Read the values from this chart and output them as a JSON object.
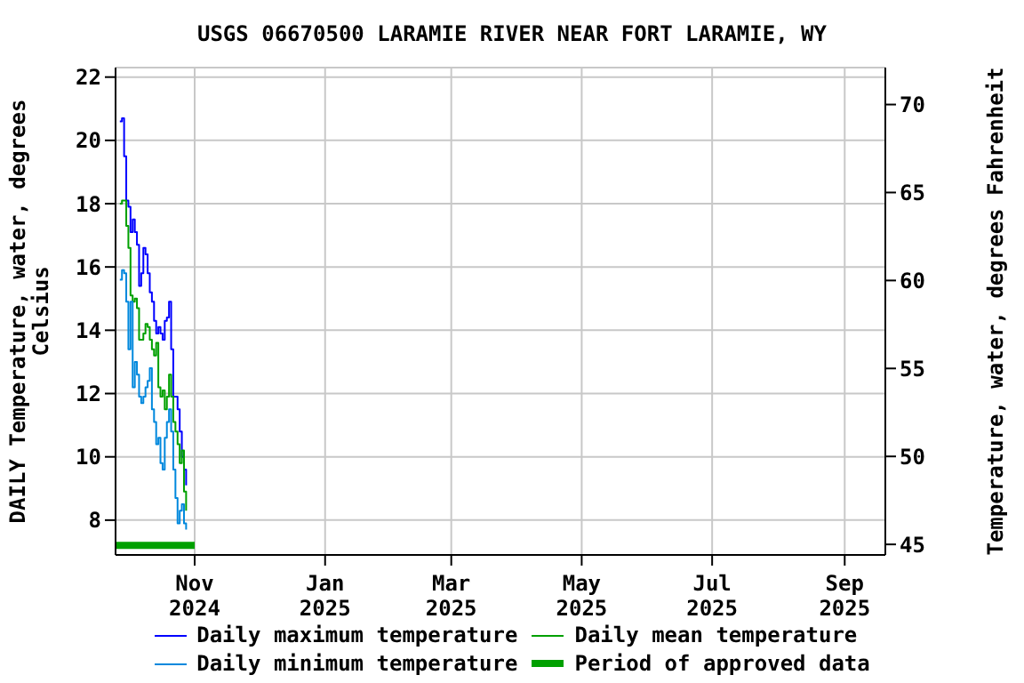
{
  "chart_data": {
    "type": "step",
    "title": "USGS 06670500 LARAMIE RIVER NEAR FORT LARAMIE, WY",
    "ylabel": "DAILY Temperature, water, degrees Celsius",
    "y2label": "Temperature, water, degrees Fahrenheit",
    "xlim": [
      "2024-09-25",
      "2025-09-20"
    ],
    "xticks": [
      {
        "value": "2024-11-01",
        "label": "Nov 2024"
      },
      {
        "value": "2025-01-01",
        "label": "Jan 2025"
      },
      {
        "value": "2025-03-01",
        "label": "Mar 2025"
      },
      {
        "value": "2025-05-01",
        "label": "May 2025"
      },
      {
        "value": "2025-07-01",
        "label": "Jul 2025"
      },
      {
        "value": "2025-09-01",
        "label": "Sep 2025"
      }
    ],
    "ylim": [
      6.9,
      22.3
    ],
    "yticks": [
      8,
      10,
      12,
      14,
      16,
      18,
      20,
      22
    ],
    "y2lim": [
      44.4,
      72.1
    ],
    "y2ticks": [
      45,
      50,
      55,
      60,
      65,
      70
    ],
    "grid": true,
    "legend": "bottom",
    "x": [
      "2024-09-27",
      "2024-09-28",
      "2024-09-29",
      "2024-09-30",
      "2024-10-01",
      "2024-10-02",
      "2024-10-03",
      "2024-10-04",
      "2024-10-05",
      "2024-10-06",
      "2024-10-07",
      "2024-10-08",
      "2024-10-09",
      "2024-10-10",
      "2024-10-11",
      "2024-10-12",
      "2024-10-13",
      "2024-10-14",
      "2024-10-15",
      "2024-10-16",
      "2024-10-17",
      "2024-10-18",
      "2024-10-19",
      "2024-10-20",
      "2024-10-21",
      "2024-10-22",
      "2024-10-23",
      "2024-10-24",
      "2024-10-25",
      "2024-10-26",
      "2024-10-27",
      "2024-10-28"
    ],
    "series": [
      {
        "name": "Daily maximum temperature",
        "color": "#0000ff",
        "values": [
          20.6,
          20.7,
          19.5,
          18.1,
          17.9,
          17.1,
          17.5,
          17.1,
          16.7,
          15.4,
          15.8,
          16.6,
          16.4,
          15.8,
          15.2,
          14.9,
          14.3,
          13.9,
          14.1,
          13.9,
          13.7,
          14.3,
          14.4,
          14.9,
          13.4,
          11.9,
          11.9,
          11.5,
          10.8,
          10.0,
          9.6,
          9.1
        ]
      },
      {
        "name": "Daily mean temperature",
        "color": "#00a000",
        "values": [
          18.0,
          18.1,
          18.1,
          17.3,
          16.6,
          15.1,
          14.9,
          15.0,
          14.7,
          13.7,
          13.7,
          13.9,
          14.2,
          14.1,
          13.7,
          13.4,
          13.2,
          13.6,
          12.2,
          11.9,
          12.1,
          11.5,
          11.9,
          12.6,
          11.9,
          11.1,
          10.8,
          10.4,
          9.8,
          10.2,
          8.9,
          8.3
        ]
      },
      {
        "name": "Daily minimum temperature",
        "color": "#0088dd",
        "values": [
          15.6,
          15.9,
          15.8,
          14.9,
          13.4,
          14.9,
          12.2,
          13.0,
          12.6,
          11.9,
          11.7,
          11.9,
          12.2,
          12.4,
          12.8,
          11.5,
          11.1,
          10.4,
          10.6,
          9.8,
          9.6,
          10.6,
          11.1,
          11.5,
          10.8,
          9.6,
          8.7,
          7.9,
          8.3,
          8.5,
          7.9,
          7.7
        ]
      },
      {
        "name": "Period of approved data",
        "type": "line",
        "color": "#00a000",
        "x": [
          "2024-09-25",
          "2024-11-01"
        ],
        "values": [
          7.2,
          7.2
        ]
      }
    ]
  }
}
